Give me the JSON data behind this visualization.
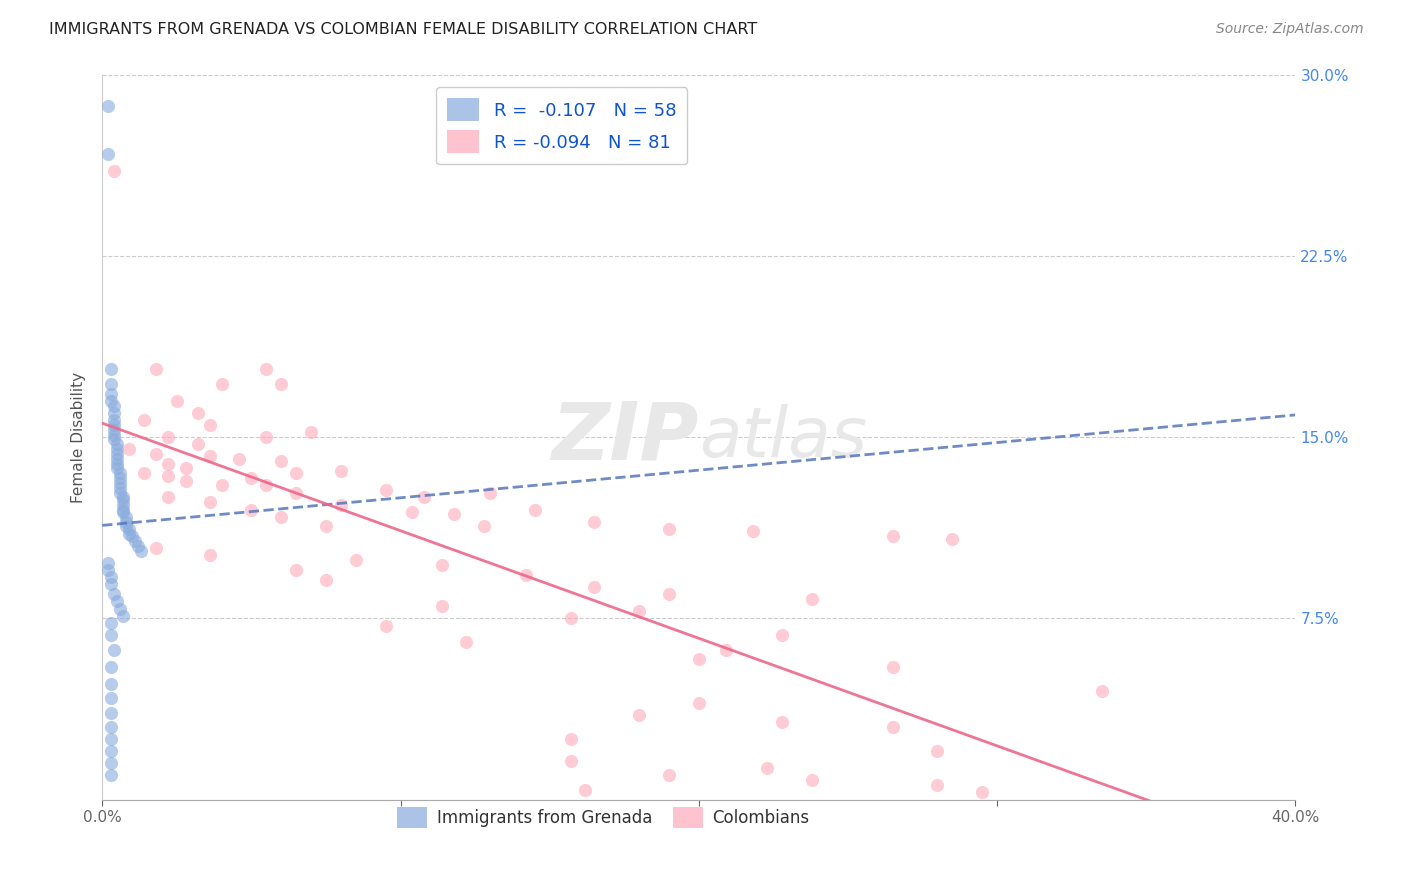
{
  "title": "IMMIGRANTS FROM GRENADA VS COLOMBIAN FEMALE DISABILITY CORRELATION CHART",
  "source": "Source: ZipAtlas.com",
  "ylabel": "Female Disability",
  "xlim": [
    0.0,
    0.4
  ],
  "ylim": [
    0.0,
    0.3
  ],
  "xticks": [
    0.0,
    0.1,
    0.2,
    0.3,
    0.4
  ],
  "xticklabels": [
    "0.0%",
    "",
    "",
    "",
    "40.0%"
  ],
  "yticks": [
    0.0,
    0.075,
    0.15,
    0.225,
    0.3
  ],
  "yticklabels_right": [
    "",
    "7.5%",
    "15.0%",
    "22.5%",
    "30.0%"
  ],
  "background_color": "#ffffff",
  "grid_color": "#cccccc",
  "watermark_zip": "ZIP",
  "watermark_atlas": "atlas",
  "blue_color": "#88aadd",
  "pink_color": "#ffaabb",
  "blue_line_color": "#5577bb",
  "pink_line_color": "#ee6688",
  "blue_scatter": [
    [
      0.002,
      0.287
    ],
    [
      0.002,
      0.267
    ],
    [
      0.003,
      0.178
    ],
    [
      0.003,
      0.172
    ],
    [
      0.003,
      0.168
    ],
    [
      0.003,
      0.165
    ],
    [
      0.004,
      0.163
    ],
    [
      0.004,
      0.16
    ],
    [
      0.004,
      0.157
    ],
    [
      0.004,
      0.155
    ],
    [
      0.004,
      0.153
    ],
    [
      0.004,
      0.151
    ],
    [
      0.004,
      0.149
    ],
    [
      0.005,
      0.147
    ],
    [
      0.005,
      0.145
    ],
    [
      0.005,
      0.143
    ],
    [
      0.005,
      0.141
    ],
    [
      0.005,
      0.139
    ],
    [
      0.005,
      0.137
    ],
    [
      0.006,
      0.135
    ],
    [
      0.006,
      0.133
    ],
    [
      0.006,
      0.131
    ],
    [
      0.006,
      0.129
    ],
    [
      0.006,
      0.127
    ],
    [
      0.007,
      0.125
    ],
    [
      0.007,
      0.124
    ],
    [
      0.007,
      0.122
    ],
    [
      0.007,
      0.12
    ],
    [
      0.007,
      0.119
    ],
    [
      0.008,
      0.117
    ],
    [
      0.008,
      0.115
    ],
    [
      0.008,
      0.113
    ],
    [
      0.009,
      0.112
    ],
    [
      0.009,
      0.11
    ],
    [
      0.01,
      0.109
    ],
    [
      0.011,
      0.107
    ],
    [
      0.012,
      0.105
    ],
    [
      0.013,
      0.103
    ],
    [
      0.002,
      0.098
    ],
    [
      0.002,
      0.095
    ],
    [
      0.003,
      0.092
    ],
    [
      0.003,
      0.089
    ],
    [
      0.004,
      0.085
    ],
    [
      0.005,
      0.082
    ],
    [
      0.006,
      0.079
    ],
    [
      0.007,
      0.076
    ],
    [
      0.003,
      0.073
    ],
    [
      0.003,
      0.068
    ],
    [
      0.004,
      0.062
    ],
    [
      0.003,
      0.055
    ],
    [
      0.003,
      0.048
    ],
    [
      0.003,
      0.042
    ],
    [
      0.003,
      0.036
    ],
    [
      0.003,
      0.03
    ],
    [
      0.003,
      0.025
    ],
    [
      0.003,
      0.02
    ],
    [
      0.003,
      0.015
    ],
    [
      0.003,
      0.01
    ]
  ],
  "pink_scatter": [
    [
      0.004,
      0.26
    ],
    [
      0.018,
      0.178
    ],
    [
      0.04,
      0.172
    ],
    [
      0.055,
      0.178
    ],
    [
      0.06,
      0.172
    ],
    [
      0.025,
      0.165
    ],
    [
      0.032,
      0.16
    ],
    [
      0.014,
      0.157
    ],
    [
      0.036,
      0.155
    ],
    [
      0.07,
      0.152
    ],
    [
      0.022,
      0.15
    ],
    [
      0.055,
      0.15
    ],
    [
      0.032,
      0.147
    ],
    [
      0.009,
      0.145
    ],
    [
      0.018,
      0.143
    ],
    [
      0.036,
      0.142
    ],
    [
      0.046,
      0.141
    ],
    [
      0.06,
      0.14
    ],
    [
      0.022,
      0.139
    ],
    [
      0.028,
      0.137
    ],
    [
      0.08,
      0.136
    ],
    [
      0.014,
      0.135
    ],
    [
      0.065,
      0.135
    ],
    [
      0.022,
      0.134
    ],
    [
      0.05,
      0.133
    ],
    [
      0.028,
      0.132
    ],
    [
      0.04,
      0.13
    ],
    [
      0.055,
      0.13
    ],
    [
      0.095,
      0.128
    ],
    [
      0.065,
      0.127
    ],
    [
      0.13,
      0.127
    ],
    [
      0.022,
      0.125
    ],
    [
      0.108,
      0.125
    ],
    [
      0.036,
      0.123
    ],
    [
      0.08,
      0.122
    ],
    [
      0.05,
      0.12
    ],
    [
      0.145,
      0.12
    ],
    [
      0.104,
      0.119
    ],
    [
      0.118,
      0.118
    ],
    [
      0.06,
      0.117
    ],
    [
      0.165,
      0.115
    ],
    [
      0.075,
      0.113
    ],
    [
      0.128,
      0.113
    ],
    [
      0.19,
      0.112
    ],
    [
      0.218,
      0.111
    ],
    [
      0.265,
      0.109
    ],
    [
      0.285,
      0.108
    ],
    [
      0.018,
      0.104
    ],
    [
      0.036,
      0.101
    ],
    [
      0.085,
      0.099
    ],
    [
      0.114,
      0.097
    ],
    [
      0.065,
      0.095
    ],
    [
      0.142,
      0.093
    ],
    [
      0.075,
      0.091
    ],
    [
      0.165,
      0.088
    ],
    [
      0.19,
      0.085
    ],
    [
      0.238,
      0.083
    ],
    [
      0.114,
      0.08
    ],
    [
      0.18,
      0.078
    ],
    [
      0.157,
      0.075
    ],
    [
      0.095,
      0.072
    ],
    [
      0.228,
      0.068
    ],
    [
      0.122,
      0.065
    ],
    [
      0.209,
      0.062
    ],
    [
      0.2,
      0.058
    ],
    [
      0.265,
      0.055
    ],
    [
      0.335,
      0.045
    ],
    [
      0.2,
      0.04
    ],
    [
      0.18,
      0.035
    ],
    [
      0.228,
      0.032
    ],
    [
      0.265,
      0.03
    ],
    [
      0.157,
      0.025
    ],
    [
      0.28,
      0.02
    ],
    [
      0.157,
      0.016
    ],
    [
      0.223,
      0.013
    ],
    [
      0.19,
      0.01
    ],
    [
      0.238,
      0.008
    ],
    [
      0.28,
      0.006
    ],
    [
      0.162,
      0.004
    ],
    [
      0.295,
      0.003
    ]
  ]
}
